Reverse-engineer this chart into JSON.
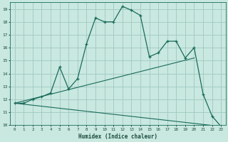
{
  "title": "",
  "xlabel": "Humidex (Indice chaleur)",
  "ylabel": "",
  "xlim": [
    -0.5,
    23.5
  ],
  "ylim": [
    10,
    19.5
  ],
  "xticks": [
    0,
    1,
    2,
    3,
    4,
    5,
    6,
    7,
    8,
    9,
    10,
    11,
    12,
    13,
    14,
    15,
    16,
    17,
    18,
    19,
    20,
    21,
    22,
    23
  ],
  "yticks": [
    10,
    11,
    12,
    13,
    14,
    15,
    16,
    17,
    18,
    19
  ],
  "background_color": "#c8e8e0",
  "grid_color": "#a0c8c0",
  "line_color": "#1a6b5a",
  "line1_x": [
    0,
    1,
    2,
    3,
    4,
    5,
    6,
    7,
    8,
    9,
    10,
    11,
    12,
    13,
    14,
    15,
    16,
    17,
    18,
    19,
    20,
    21,
    22,
    23
  ],
  "line1_y": [
    11.7,
    11.7,
    12.0,
    12.2,
    12.5,
    14.5,
    12.8,
    13.6,
    16.3,
    18.3,
    18.0,
    18.0,
    19.2,
    18.9,
    18.5,
    15.3,
    15.6,
    16.5,
    16.5,
    15.2,
    16.0,
    12.4,
    10.7,
    9.9
  ],
  "line2_x": [
    0,
    20
  ],
  "line2_y": [
    11.7,
    15.2
  ],
  "line3_x": [
    0,
    23
  ],
  "line3_y": [
    11.7,
    9.9
  ]
}
